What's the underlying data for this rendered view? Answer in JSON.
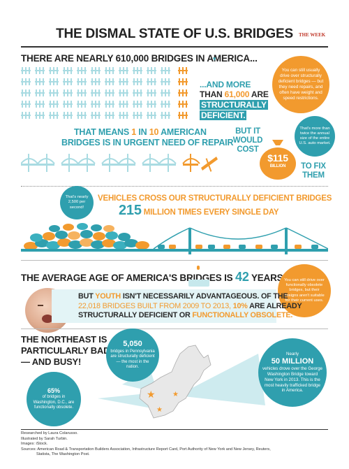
{
  "title": "THE DISMAL STATE OF U.S. BRIDGES",
  "brand": "THE WEEK",
  "s1": {
    "headline": "THERE ARE NEARLY 610,000 BRIDGES IN AMERICA...",
    "more_line1_a": "...AND MORE",
    "more_line2_a": "THAN",
    "more_num": "61,000",
    "more_line2_b": "ARE",
    "more_line3": "STRUCTURALLY",
    "more_line4": "DEFICIENT.",
    "bubble": "You can still usually drive over structurally deficient bridges — but they need repairs, and often have weight and speed restrictions."
  },
  "s2": {
    "line1_a": "THAT MEANS",
    "one": "1",
    "line1_b": "IN",
    "ten": "10",
    "line1_c": "AMERICAN",
    "line2": "BRIDGES IS IN URGENT NEED OF REPAIR",
    "cost_line1": "BUT IT",
    "cost_line2": "WOULD",
    "cost_line3": "COST",
    "amount": "$115",
    "amount_unit": "BILLION",
    "fix_line1": "TO FIX",
    "fix_line2": "THEM",
    "bubble": "That's more than twice the annual size of the entire U.S. auto market."
  },
  "s3": {
    "bubble": "That's nearly 2,500 per second!",
    "line1": "VEHICLES CROSS OUR STRUCTURALLY DEFICIENT BRIDGES",
    "num": "215",
    "line2": "MILLION TIMES EVERY SINGLE DAY"
  },
  "s4": {
    "headline_a": "THE AVERAGE AGE OF AMERICA'S BRIDGES IS",
    "age": "42",
    "headline_b": "YEARS OLD.",
    "bubble": "You can still drive over functionally obsolete bridges, but their designs aren't suitable for their current uses.",
    "p1_a": "BUT",
    "p1_youth": "YOUTH",
    "p1_b": "ISN'T NECESSARILY ADVANTAGEOUS. OF THE",
    "p2_num": "22,018 BRIDGES BUILT FROM 2009 TO 2013,",
    "p2_pct": "10%",
    "p2_b": "ARE ALREADY",
    "p3_a": "STRUCTURALLY DEFICIENT OR",
    "p3_b": "FUNCTIONALLY OBSOLETE."
  },
  "s5": {
    "headline1": "THE NORTHEAST IS",
    "headline2": "PARTICULARLY BAD",
    "headline3": "— AND BUSY!",
    "pa_num": "5,050",
    "pa_text": "bridges in Pennsylvania are structurally deficient — the most in the nation.",
    "dc_num": "65%",
    "dc_text": "of bridges in Washington, D.C., are functionally obsolete.",
    "gw_pre": "Nearly",
    "gw_num": "50 MILLION",
    "gw_text": "vehicles drove over the George Washington Bridge toward New York in 2013. This is the most heavily trafficked bridge in America."
  },
  "footer": {
    "l1": "Researched by Laura Colarusso.",
    "l2": "Illustrated by Sarah Turbin.",
    "l3": "Images: iStock.",
    "l4": "Sources: American Road & Transportation Builders Association, Infrastructure Report Card, Port Authority of New York and New Jersey, Reuters,",
    "l5": "Statista, The Washington Post."
  },
  "colors": {
    "teal": "#2f9fae",
    "orange": "#f29a2e",
    "light_teal": "#c6e8ec",
    "dark": "#2a2a2a"
  }
}
